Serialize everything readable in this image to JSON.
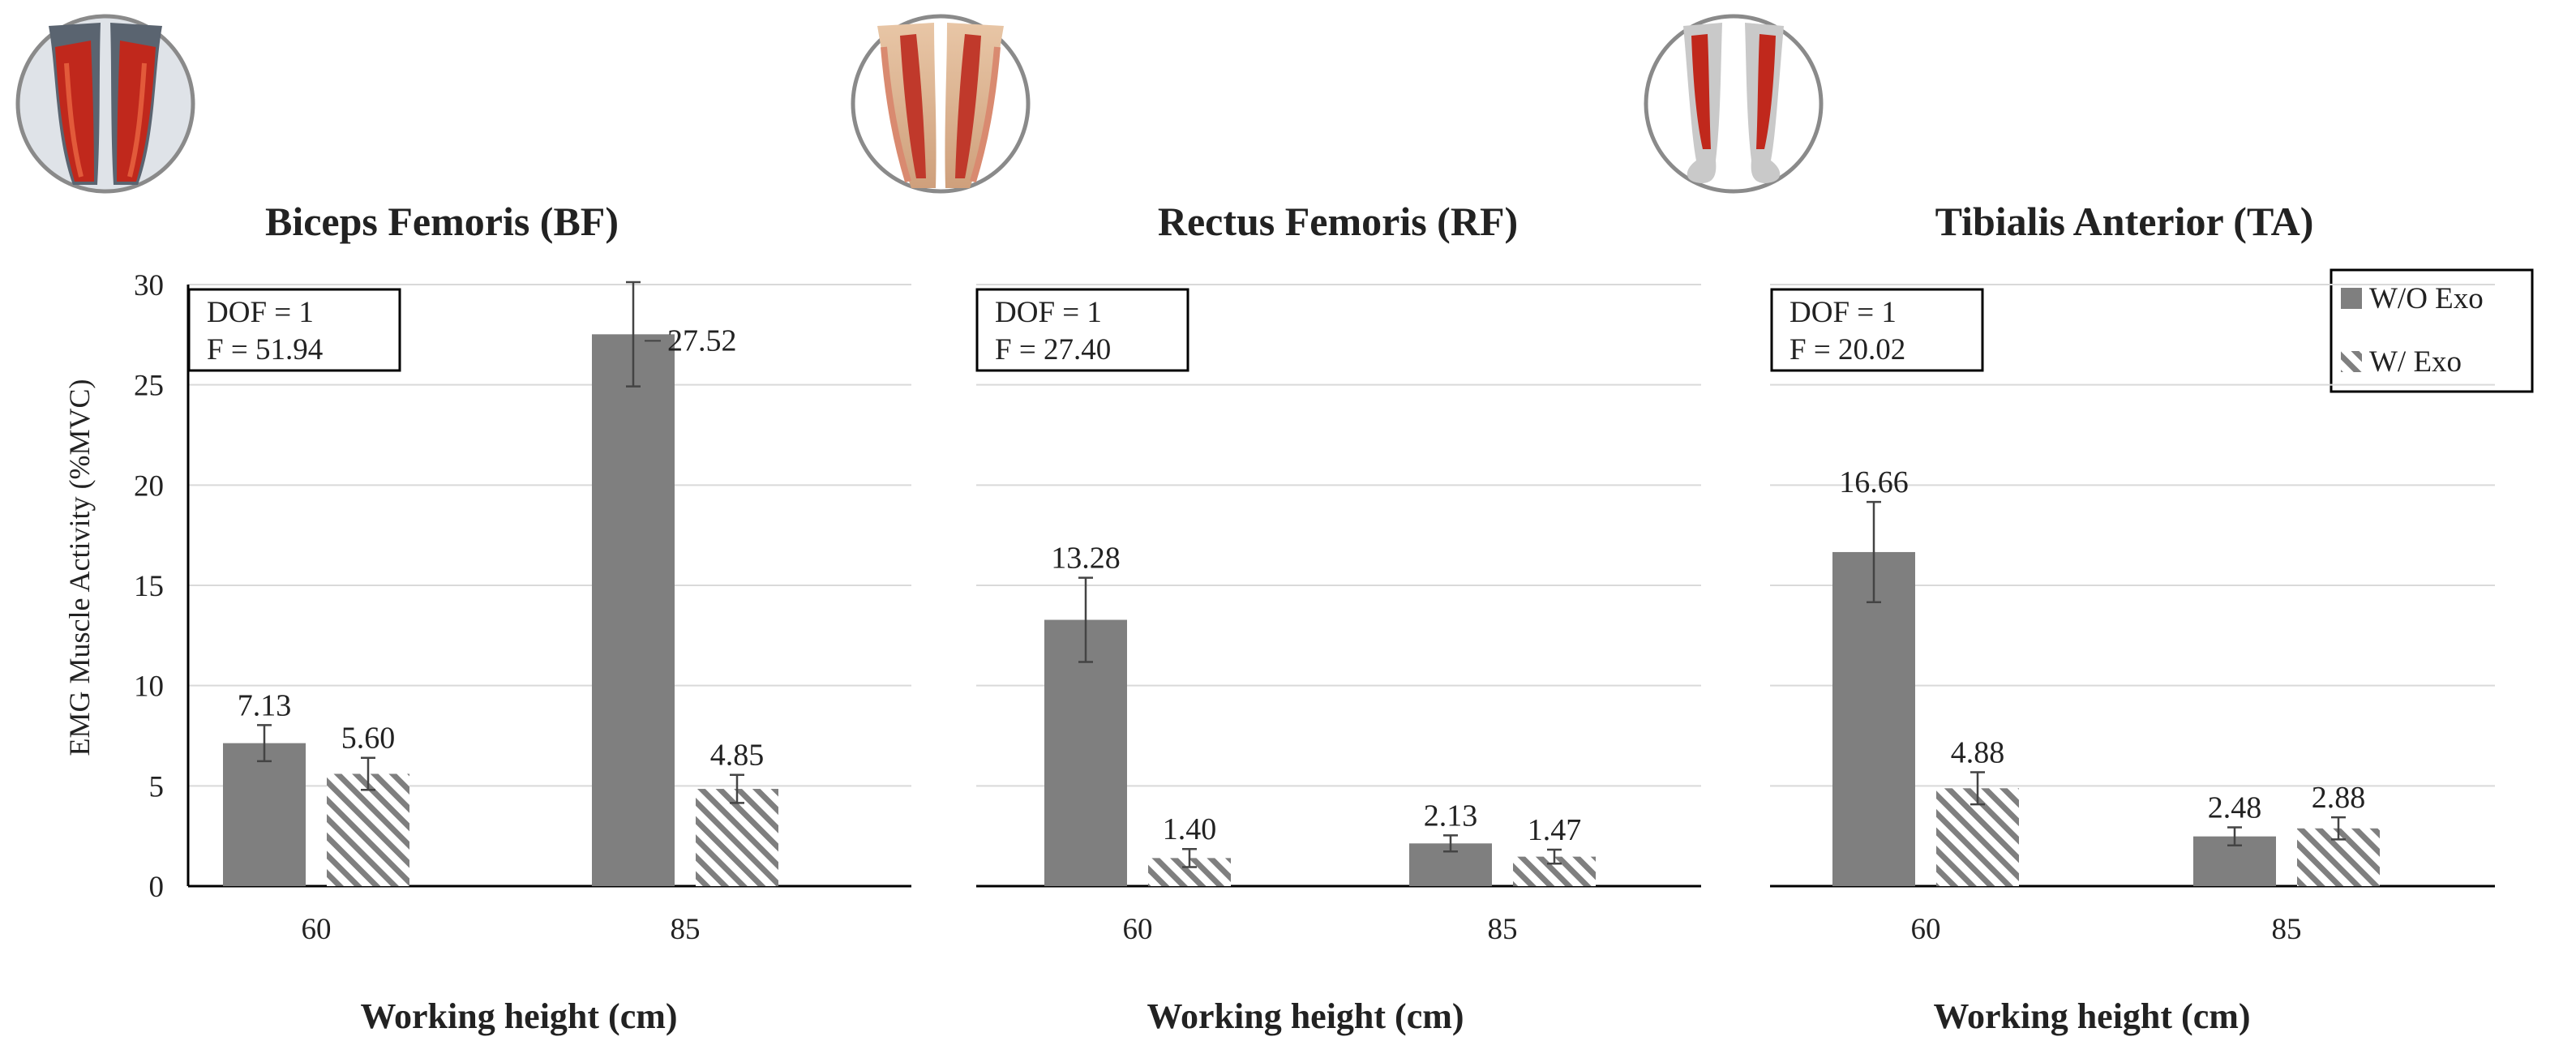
{
  "chart_data": {
    "type": "bar",
    "ylabel": "EMG Muscle Activity  (%MVC)",
    "ylim": [
      0,
      30
    ],
    "yticks": [
      "0",
      "5",
      "10",
      "15",
      "20",
      "25",
      "30"
    ],
    "grid": true,
    "legend": {
      "placement": "top-right",
      "entries": [
        "W/O Exo",
        "W/ Exo"
      ],
      "swatch_colors": [
        "#7f7f7f",
        "#7f7f7f"
      ],
      "swatch_patterns": [
        "solid",
        "hatched"
      ]
    },
    "series_colors": {
      "without": "#7f7f7f",
      "with": "#7f7f7f"
    },
    "panels": [
      {
        "title": "Biceps Femoris (BF)",
        "icon": "thigh-back-muscle-icon",
        "xlabel": "Working height (cm)",
        "categories": [
          "60",
          "85"
        ],
        "stats": [
          "DOF = 1",
          "F = 51.94"
        ],
        "series": [
          {
            "values": [
              7.13,
              27.52
            ],
            "labels": [
              "7.13",
              "27.52"
            ],
            "errors": [
              0.9,
              2.6
            ]
          },
          {
            "values": [
              5.6,
              4.85
            ],
            "labels": [
              "5.60",
              "4.85"
            ],
            "errors": [
              0.8,
              0.7
            ]
          }
        ]
      },
      {
        "title": "Rectus Femoris (RF)",
        "icon": "thigh-front-muscle-icon",
        "xlabel": "Working height (cm)",
        "categories": [
          "60",
          "85"
        ],
        "stats": [
          "DOF = 1",
          "F = 27.40"
        ],
        "series": [
          {
            "values": [
              13.28,
              2.13
            ],
            "labels": [
              "13.28",
              "2.13"
            ],
            "errors": [
              2.1,
              0.4
            ]
          },
          {
            "values": [
              1.4,
              1.47
            ],
            "labels": [
              "1.40",
              "1.47"
            ],
            "errors": [
              0.45,
              0.35
            ]
          }
        ]
      },
      {
        "title": "Tibialis  Anterior (TA)",
        "icon": "shin-muscle-icon",
        "xlabel": "Working height (cm)",
        "categories": [
          "60",
          "85"
        ],
        "stats": [
          "DOF = 1",
          "F = 20.02"
        ],
        "series": [
          {
            "values": [
              16.66,
              2.48
            ],
            "labels": [
              "16.66",
              "2.48"
            ],
            "errors": [
              2.5,
              0.45
            ]
          },
          {
            "values": [
              4.88,
              2.88
            ],
            "labels": [
              "4.88",
              "2.88"
            ],
            "errors": [
              0.8,
              0.55
            ]
          }
        ]
      }
    ]
  }
}
